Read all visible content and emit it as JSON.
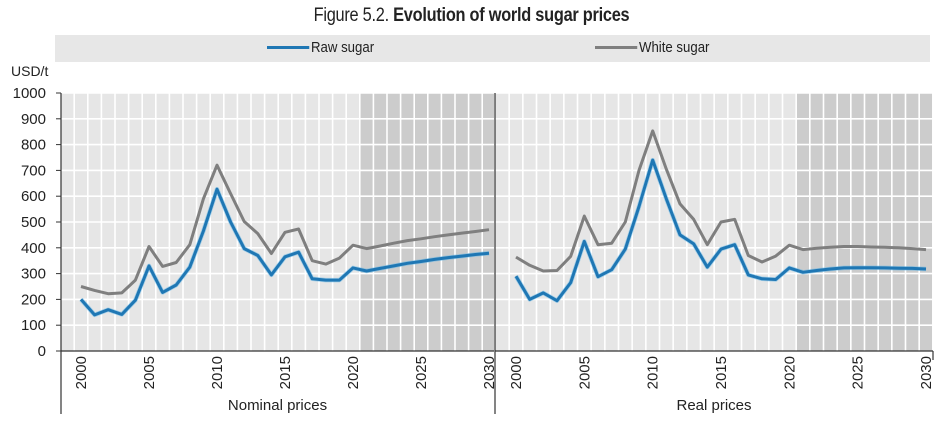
{
  "title_prefix": "Figure 5.2. ",
  "title_bold": "Evolution of world sugar prices",
  "legend": [
    {
      "label": "Raw sugar",
      "color": "#1f77b4"
    },
    {
      "label": "White sugar",
      "color": "#7f7f7f"
    }
  ],
  "chart_data": {
    "type": "line",
    "title": "Figure 5.2. Evolution of world sugar prices",
    "ylabel": "USD/t",
    "ylim": [
      0,
      1000
    ],
    "yticks": [
      0,
      100,
      200,
      300,
      400,
      500,
      600,
      700,
      800,
      900,
      1000
    ],
    "xticks": [
      "2000",
      "2005",
      "2010",
      "2015",
      "2020",
      "2025",
      "2030"
    ],
    "x": [
      2000,
      2001,
      2002,
      2003,
      2004,
      2005,
      2006,
      2007,
      2008,
      2009,
      2010,
      2011,
      2012,
      2013,
      2014,
      2015,
      2016,
      2017,
      2018,
      2019,
      2020,
      2021,
      2022,
      2023,
      2024,
      2025,
      2026,
      2027,
      2028,
      2029,
      2030
    ],
    "projection_start": 2021,
    "grid": true,
    "legend_position": "top",
    "panels": [
      {
        "name": "Nominal prices",
        "series": [
          {
            "name": "Raw sugar",
            "color": "#1f77b4",
            "values": [
              200,
              140,
              160,
              142,
              197,
              330,
              227,
              256,
              325,
              465,
              627,
              500,
              397,
              370,
              295,
              365,
              383,
              280,
              275,
              275,
              322,
              310,
              320,
              330,
              340,
              347,
              355,
              362,
              368,
              374,
              379
            ]
          },
          {
            "name": "White sugar",
            "color": "#7f7f7f",
            "values": [
              250,
              235,
              222,
              225,
              275,
              405,
              328,
              343,
              412,
              590,
              720,
              610,
              502,
              455,
              378,
              460,
              473,
              350,
              337,
              360,
              410,
              397,
              407,
              418,
              428,
              435,
              443,
              450,
              457,
              463,
              470
            ]
          }
        ]
      },
      {
        "name": "Real prices",
        "series": [
          {
            "name": "Raw sugar",
            "color": "#1f77b4",
            "values": [
              290,
              200,
              225,
              195,
              265,
              425,
              288,
              315,
              395,
              560,
              740,
              590,
              450,
              415,
              325,
              395,
              412,
              295,
              280,
              277,
              322,
              305,
              312,
              318,
              322,
              323,
              323,
              322,
              321,
              320,
              318
            ]
          },
          {
            "name": "White sugar",
            "color": "#7f7f7f",
            "values": [
              364,
              332,
              310,
              312,
              367,
              523,
              412,
              418,
              500,
              700,
              853,
              705,
              570,
              510,
              412,
              500,
              510,
              370,
              345,
              368,
              410,
              393,
              398,
              402,
              405,
              405,
              403,
              402,
              400,
              397,
              393
            ]
          }
        ]
      }
    ]
  }
}
